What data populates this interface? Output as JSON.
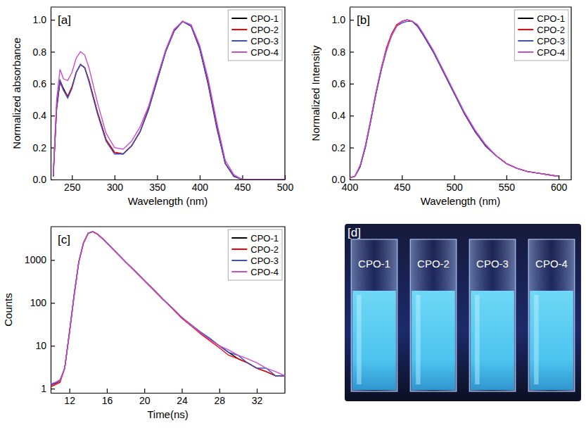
{
  "chart_data": [
    {
      "type": "line",
      "title": "[a]",
      "x_label": "Wavelength (nm)",
      "y_label": "Normalized absorbance",
      "xlim": [
        225,
        500
      ],
      "ylim": [
        0,
        1.08
      ],
      "xticks": [
        250,
        300,
        350,
        400,
        450,
        500
      ],
      "yticks": [
        {
          "value": 0,
          "label": "0.0"
        },
        {
          "value": 0.2,
          "label": "0.2"
        },
        {
          "value": 0.4,
          "label": "0.4"
        },
        {
          "value": 0.6,
          "label": "0.6"
        },
        {
          "value": 0.8,
          "label": "0.8"
        },
        {
          "value": 1.0,
          "label": "1.0"
        }
      ],
      "grid": false,
      "legend": "top-right",
      "x": [
        228,
        232,
        236,
        240,
        245,
        250,
        255,
        260,
        265,
        270,
        280,
        290,
        300,
        310,
        320,
        330,
        340,
        350,
        360,
        370,
        380,
        390,
        400,
        410,
        420,
        430,
        440,
        450,
        460,
        480,
        500
      ],
      "series": [
        {
          "name": "CPO-1",
          "color": "#000000",
          "values": [
            0.02,
            0.45,
            0.62,
            0.57,
            0.52,
            0.58,
            0.67,
            0.72,
            0.7,
            0.62,
            0.42,
            0.25,
            0.17,
            0.16,
            0.21,
            0.3,
            0.44,
            0.62,
            0.8,
            0.93,
            0.99,
            0.96,
            0.82,
            0.6,
            0.33,
            0.1,
            0.02,
            0.0,
            0.0,
            0.0,
            0.0
          ]
        },
        {
          "name": "CPO-2",
          "color": "#ff0000",
          "values": [
            0.02,
            0.44,
            0.61,
            0.56,
            0.52,
            0.58,
            0.67,
            0.72,
            0.7,
            0.62,
            0.42,
            0.25,
            0.17,
            0.16,
            0.21,
            0.3,
            0.45,
            0.63,
            0.81,
            0.94,
            0.99,
            0.96,
            0.82,
            0.6,
            0.33,
            0.1,
            0.02,
            0.0,
            0.0,
            0.0,
            0.0
          ]
        },
        {
          "name": "CPO-3",
          "color": "#3c4fc4",
          "values": [
            0.02,
            0.45,
            0.62,
            0.56,
            0.51,
            0.57,
            0.67,
            0.72,
            0.7,
            0.61,
            0.41,
            0.24,
            0.16,
            0.16,
            0.21,
            0.3,
            0.44,
            0.62,
            0.8,
            0.93,
            0.99,
            0.96,
            0.82,
            0.59,
            0.32,
            0.1,
            0.02,
            0.0,
            0.0,
            0.0,
            0.0
          ]
        },
        {
          "name": "CPO-4",
          "color": "#c84fc8",
          "values": [
            0.03,
            0.5,
            0.69,
            0.63,
            0.62,
            0.67,
            0.76,
            0.8,
            0.78,
            0.7,
            0.48,
            0.29,
            0.2,
            0.19,
            0.24,
            0.33,
            0.46,
            0.64,
            0.81,
            0.94,
            0.99,
            0.97,
            0.84,
            0.63,
            0.36,
            0.12,
            0.03,
            0.0,
            0.0,
            0.0,
            0.0
          ]
        }
      ]
    },
    {
      "type": "line",
      "title": "[b]",
      "x_label": "Wavelength (nm)",
      "y_label": "Normalized Intensity",
      "xlim": [
        400,
        612
      ],
      "ylim": [
        0,
        1.08
      ],
      "xticks": [
        400,
        450,
        500,
        550,
        600
      ],
      "yticks": [
        {
          "value": 0,
          "label": "0.0"
        },
        {
          "value": 0.2,
          "label": "0.2"
        },
        {
          "value": 0.4,
          "label": "0.4"
        },
        {
          "value": 0.6,
          "label": "0.6"
        },
        {
          "value": 0.8,
          "label": "0.8"
        },
        {
          "value": 1.0,
          "label": "1.0"
        }
      ],
      "grid": false,
      "legend": "top-right",
      "x": [
        400,
        405,
        410,
        415,
        420,
        425,
        430,
        435,
        440,
        445,
        450,
        455,
        460,
        465,
        470,
        480,
        490,
        500,
        510,
        520,
        530,
        540,
        550,
        560,
        570,
        580,
        590,
        600
      ],
      "series": [
        {
          "name": "CPO-1",
          "color": "#000000",
          "values": [
            0.01,
            0.02,
            0.08,
            0.2,
            0.36,
            0.53,
            0.68,
            0.81,
            0.9,
            0.96,
            0.99,
            1.0,
            0.99,
            0.96,
            0.91,
            0.8,
            0.67,
            0.54,
            0.41,
            0.3,
            0.21,
            0.15,
            0.1,
            0.07,
            0.05,
            0.04,
            0.03,
            0.02
          ]
        },
        {
          "name": "CPO-2",
          "color": "#ff0000",
          "values": [
            0.01,
            0.02,
            0.08,
            0.21,
            0.37,
            0.54,
            0.69,
            0.82,
            0.91,
            0.97,
            0.99,
            1.0,
            0.99,
            0.96,
            0.91,
            0.8,
            0.67,
            0.54,
            0.41,
            0.3,
            0.21,
            0.15,
            0.1,
            0.07,
            0.05,
            0.04,
            0.03,
            0.02
          ]
        },
        {
          "name": "CPO-3",
          "color": "#3c4fc4",
          "values": [
            0.01,
            0.02,
            0.08,
            0.2,
            0.36,
            0.53,
            0.68,
            0.8,
            0.9,
            0.96,
            0.98,
            0.99,
            0.99,
            0.96,
            0.91,
            0.8,
            0.67,
            0.54,
            0.41,
            0.3,
            0.21,
            0.15,
            0.1,
            0.07,
            0.05,
            0.04,
            0.03,
            0.02
          ]
        },
        {
          "name": "CPO-4",
          "color": "#c84fc8",
          "values": [
            0.01,
            0.02,
            0.09,
            0.21,
            0.37,
            0.54,
            0.69,
            0.81,
            0.9,
            0.96,
            0.99,
            1.0,
            0.99,
            0.97,
            0.92,
            0.81,
            0.68,
            0.55,
            0.42,
            0.31,
            0.22,
            0.15,
            0.1,
            0.07,
            0.05,
            0.04,
            0.03,
            0.02
          ]
        }
      ]
    },
    {
      "type": "line",
      "title": "[c]",
      "x_label": "Time(ns)",
      "y_label": "Counts",
      "xlim": [
        10,
        35
      ],
      "ylim": [
        0.8,
        6000
      ],
      "log": "y",
      "xticks": [
        12,
        16,
        20,
        24,
        28,
        32
      ],
      "yticks": [
        1,
        10,
        100,
        1000
      ],
      "grid": false,
      "legend": "top-right",
      "x": [
        10,
        11,
        11.5,
        12,
        12.5,
        13,
        13.5,
        14,
        14.5,
        15,
        15.5,
        16,
        17,
        18,
        19,
        20,
        21,
        22,
        23,
        24,
        25,
        26,
        27,
        28,
        29,
        30,
        31,
        32,
        33,
        34,
        35
      ],
      "series": [
        {
          "name": "CPO-1",
          "color": "#000000",
          "values": [
            1.2,
            1.5,
            3,
            20,
            150,
            900,
            2500,
            4200,
            4600,
            4000,
            3200,
            2500,
            1500,
            900,
            550,
            330,
            200,
            120,
            75,
            45,
            30,
            20,
            14,
            10,
            7,
            5,
            4,
            3,
            2.5,
            2,
            2
          ]
        },
        {
          "name": "CPO-2",
          "color": "#ff0000",
          "values": [
            1.1,
            1.4,
            3,
            19,
            140,
            880,
            2450,
            4150,
            4600,
            4050,
            3250,
            2520,
            1520,
            910,
            560,
            335,
            205,
            122,
            74,
            44,
            29,
            19,
            13,
            9,
            6,
            5,
            4,
            3,
            2.5,
            2,
            2
          ]
        },
        {
          "name": "CPO-3",
          "color": "#3c4fc4",
          "values": [
            1.2,
            1.6,
            3,
            21,
            155,
            910,
            2520,
            4220,
            4600,
            3980,
            3180,
            2480,
            1490,
            895,
            545,
            328,
            198,
            119,
            76,
            46,
            31,
            21,
            15,
            10,
            7,
            6,
            4,
            3,
            3,
            2,
            2
          ]
        },
        {
          "name": "CPO-4",
          "color": "#c84fc8",
          "values": [
            1.3,
            1.5,
            3,
            20,
            148,
            895,
            2490,
            4190,
            4600,
            4010,
            3210,
            2510,
            1510,
            905,
            555,
            332,
            202,
            121,
            76,
            46,
            30,
            20,
            14,
            10,
            8,
            6,
            5,
            4,
            3,
            2.5,
            2
          ]
        }
      ]
    }
  ],
  "photo": {
    "label": "[d]",
    "samples": [
      "CPO-1",
      "CPO-2",
      "CPO-3",
      "CPO-4"
    ]
  }
}
